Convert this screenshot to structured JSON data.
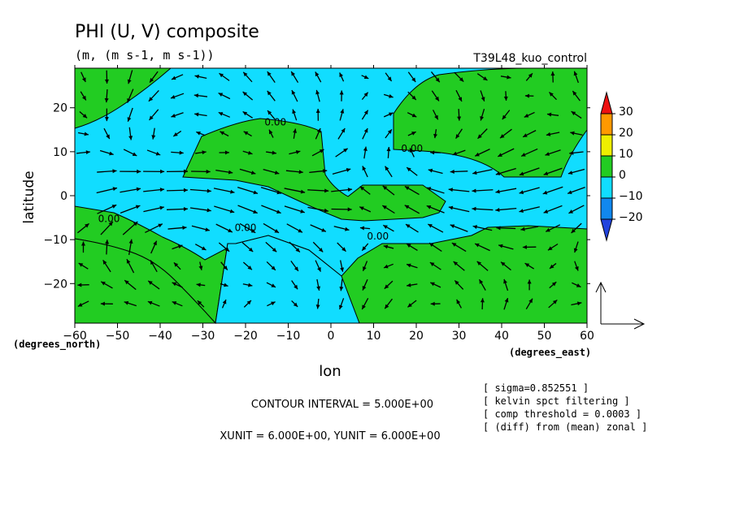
{
  "chart_data": {
    "type": "heatmap",
    "title": "PHI (U, V) composite",
    "subtitle": "(m, (m s-1, m s-1))",
    "run_label": "T39L48_kuo_control",
    "xlabel": "lon",
    "ylabel": "latitude",
    "x_unit_label": "(degrees_east)",
    "y_unit_label": "(degrees_north)",
    "xlim": [
      -60,
      60
    ],
    "ylim": [
      -29,
      29
    ],
    "x_ticks": [
      -60,
      -50,
      -40,
      -30,
      -20,
      -10,
      0,
      10,
      20,
      30,
      40,
      50,
      60
    ],
    "x_tick_labels": [
      "−60",
      "−50",
      "−40",
      "−30",
      "−20",
      "−10",
      "0",
      "10",
      "20",
      "30",
      "40",
      "50",
      "60"
    ],
    "y_ticks": [
      20,
      10,
      0,
      -10,
      -20
    ],
    "y_tick_labels": [
      "20",
      "10",
      "0",
      "−10",
      "−20"
    ],
    "contour_labels": [
      {
        "lon": -13,
        "lat": 16,
        "text": "0.00"
      },
      {
        "lon": 19,
        "lat": 10,
        "text": "0.00"
      },
      {
        "lon": -52,
        "lat": -6,
        "text": "0.00"
      },
      {
        "lon": -20,
        "lat": -8,
        "text": "0.00"
      },
      {
        "lon": 11,
        "lat": -10,
        "text": "0.00"
      }
    ],
    "colorbar": {
      "levels": [
        30,
        20,
        10,
        0,
        -10,
        -20
      ],
      "labels": [
        "30",
        "20",
        "10",
        "0",
        "−10",
        "−20"
      ],
      "colors": [
        "#ee1111",
        "#ff9900",
        "#eeee00",
        "#22cc22",
        "#11ddff",
        "#1188ee",
        "#2244dd"
      ]
    },
    "negative_fill": "#11ddff",
    "positive_fill": "#22cc22",
    "contour_interval_text": "CONTOUR INTERVAL = 5.000E+00",
    "unit_vector_text": "XUNIT = 6.000E+00, YUNIT = 6.000E+00",
    "notes": [
      "[ sigma=0.852551 ]",
      "[ kelvin spct filtering ]",
      "[ comp threshold = 0.0003 ]",
      "[ (diff) from (mean) zonal ]"
    ]
  }
}
